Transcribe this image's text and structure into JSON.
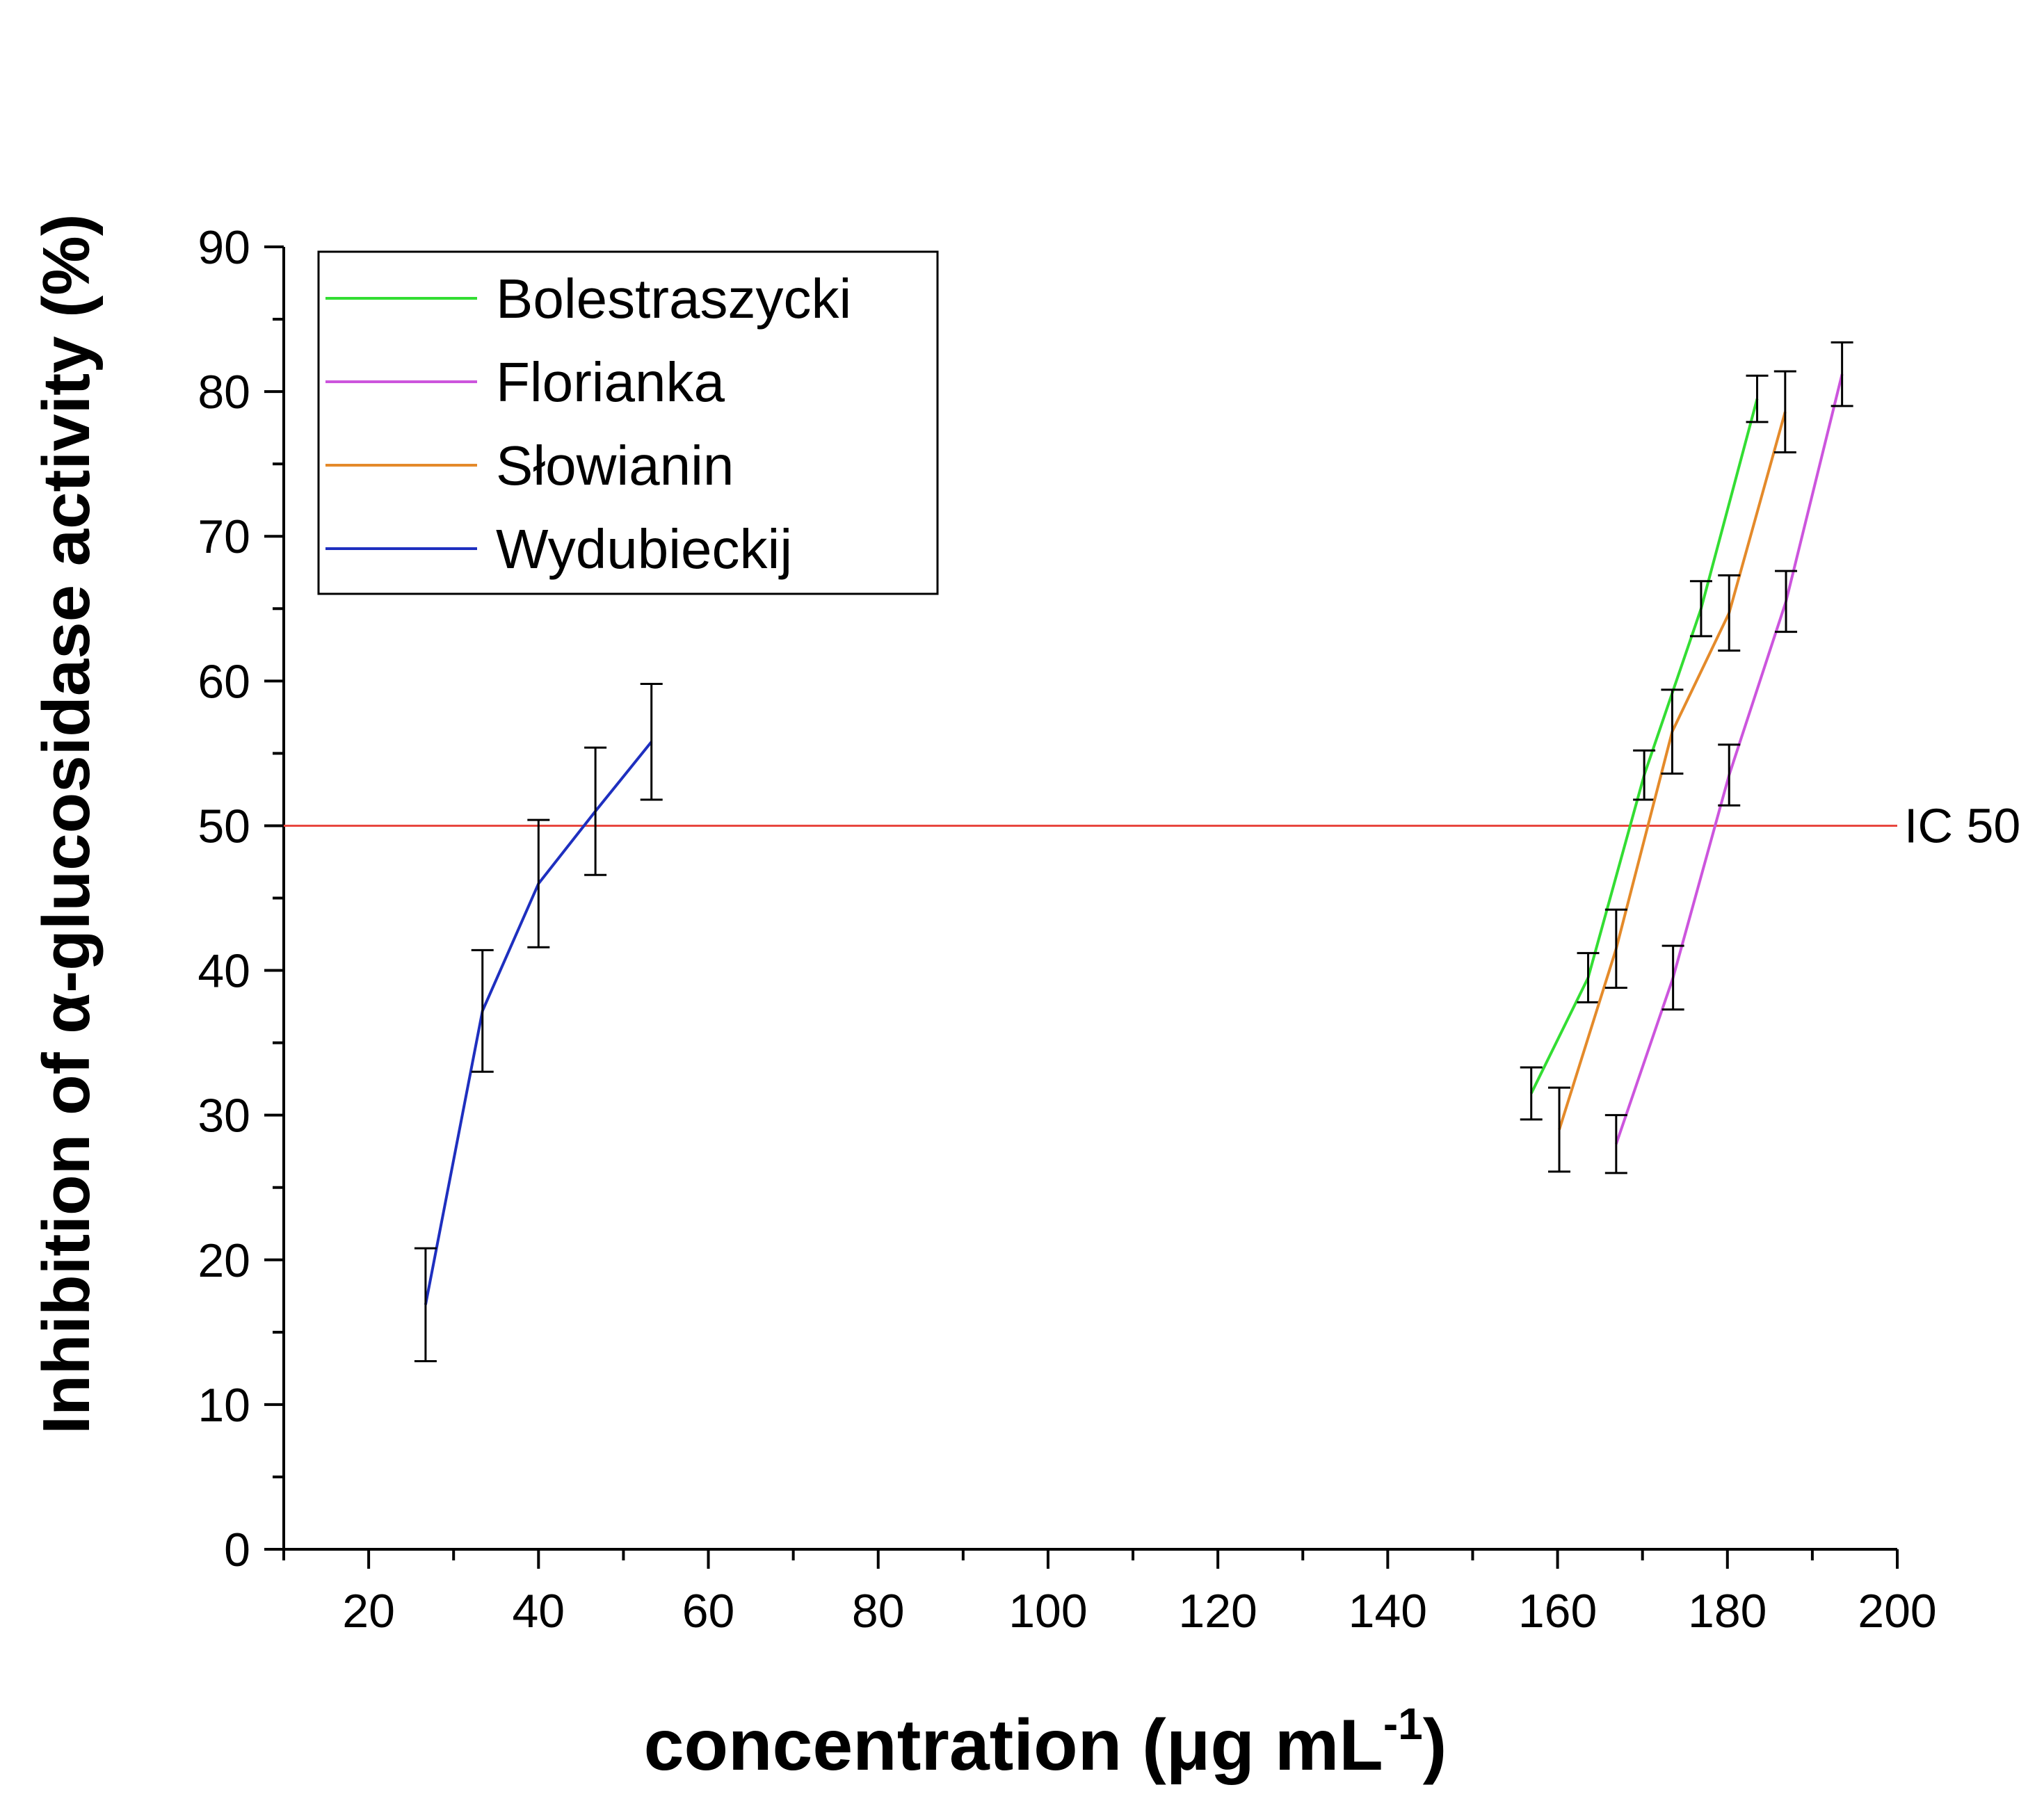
{
  "chart_data": {
    "type": "line",
    "title": "",
    "xlabel": "concentration (μg mL",
    "xlabel_sup": "-1",
    "xlabel_close": ")",
    "ylabel": "Inhibition of α-glucosidase activity (%)",
    "xlim": [
      10,
      200
    ],
    "ylim": [
      0,
      90
    ],
    "x_ticks": [
      20,
      40,
      60,
      80,
      100,
      120,
      140,
      160,
      180,
      200
    ],
    "y_ticks": [
      0,
      10,
      20,
      30,
      40,
      50,
      60,
      70,
      80,
      90
    ],
    "legend_position": "top-left",
    "reference_line": {
      "label": "IC 50",
      "y": 50,
      "color": "#e8473f"
    },
    "series": [
      {
        "name": "Bolestraszycki",
        "color": "#33dd33",
        "x": [
          156.9,
          163.6,
          170.2,
          176.9,
          183.5
        ],
        "y": [
          31.5,
          39.5,
          53.5,
          65.0,
          79.5
        ],
        "err": [
          1.8,
          1.7,
          1.7,
          1.9,
          1.6
        ]
      },
      {
        "name": "Florianka",
        "color": "#cc55dd",
        "x": [
          166.9,
          173.6,
          180.2,
          186.9,
          193.5
        ],
        "y": [
          28.0,
          39.5,
          53.5,
          65.5,
          81.2
        ],
        "err": [
          2.0,
          2.2,
          2.1,
          2.1,
          2.2
        ]
      },
      {
        "name": "Słowianin",
        "color": "#e48a2a",
        "x": [
          160.2,
          166.9,
          173.5,
          180.2,
          186.8
        ],
        "y": [
          29.0,
          41.5,
          56.5,
          64.7,
          78.6
        ],
        "err": [
          2.9,
          2.7,
          2.9,
          2.6,
          2.8
        ]
      },
      {
        "name": "Wydubieckij",
        "color": "#1e2fbf",
        "x": [
          26.7,
          33.4,
          40.0,
          46.7,
          53.3
        ],
        "y": [
          16.9,
          37.2,
          46.0,
          51.0,
          55.8
        ],
        "err": [
          3.9,
          4.2,
          4.4,
          4.4,
          4.0
        ]
      }
    ]
  }
}
